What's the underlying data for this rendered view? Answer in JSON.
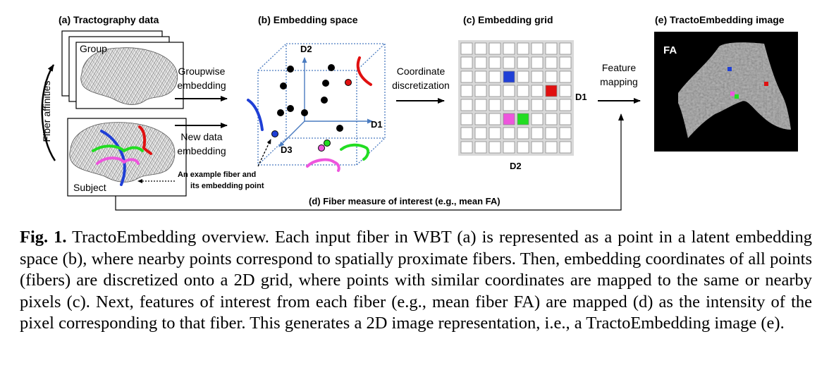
{
  "panels": {
    "a": {
      "title": "(a) Tractography data",
      "group_label": "Group",
      "subject_label": "Subject",
      "side_label": "Fiber affinities"
    },
    "b": {
      "title": "(b) Embedding space",
      "axis_d1": "D1",
      "axis_d2": "D2",
      "axis_d3": "D3",
      "example_note_line1": "An example fiber and",
      "example_note_line2": "its embedding point"
    },
    "c": {
      "title": "(c) Embedding grid",
      "axis_d1": "D1",
      "axis_d2": "D2"
    },
    "e": {
      "title": "(e) TractoEmbedding image",
      "fa_label": "FA"
    }
  },
  "arrows": {
    "groupwise_line1": "Groupwise",
    "groupwise_line2": "embedding",
    "newdata_line1": "New data",
    "newdata_line2": "embedding",
    "coord_line1": "Coordinate",
    "coord_line2": "discretization",
    "feature_line1": "Feature",
    "feature_line2": "mapping",
    "measure_label": "(d) Fiber measure of interest (e.g., mean FA)"
  },
  "caption": {
    "label": "Fig. 1.",
    "text": "TractoEmbedding overview. Each input fiber in WBT (a) is represented as a point in a latent embedding space (b), where nearby points correspond to spatially proximate fibers. Then, embedding coordinates of all points (fibers) are discretized onto a 2D grid, where points with similar coordinates are mapped to the same or nearby pixels (c). Next, features of interest from each fiber (e.g., mean fiber FA) are mapped (d) as the intensity of the pixel corresponding to that fiber. This generates a 2D image representation, i.e., a TractoEmbedding image (e)."
  },
  "colors": {
    "blue": "#1f3fd6",
    "red": "#e01010",
    "green": "#22dd22",
    "magenta": "#ee55dd",
    "axis": "#4a7bc0"
  }
}
